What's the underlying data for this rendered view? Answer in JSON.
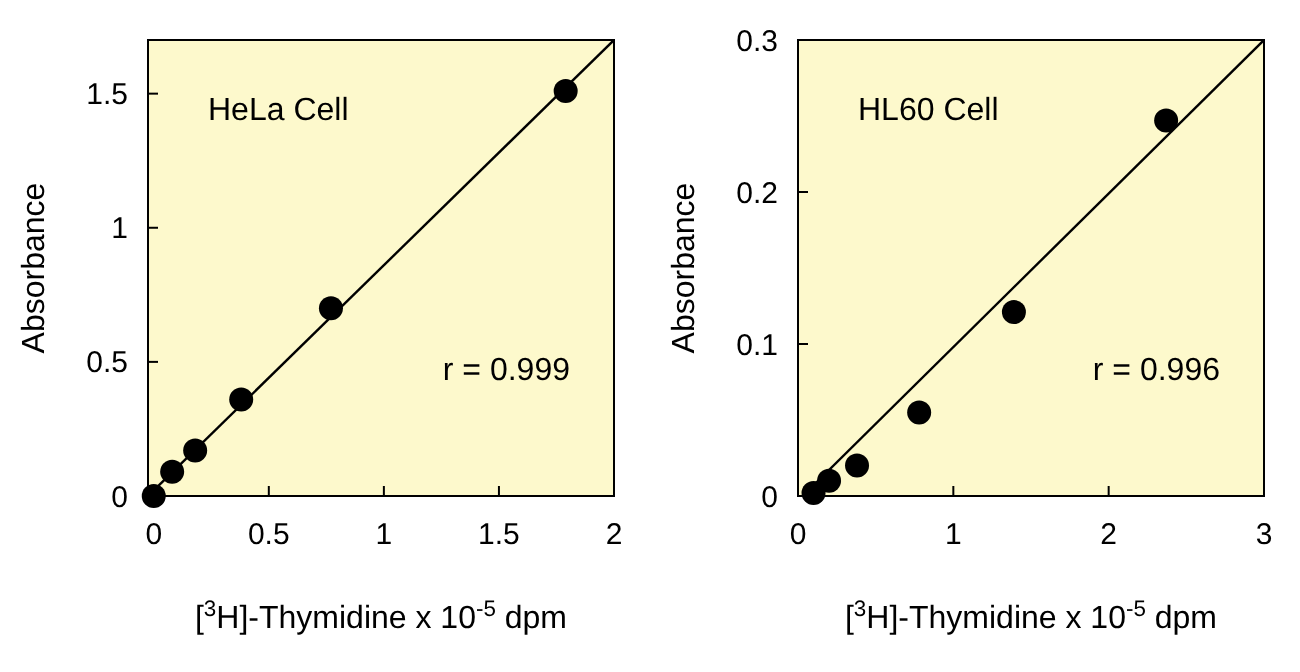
{
  "chart_data": [
    {
      "type": "scatter",
      "xlabel": "[$^{3}$H]-Thymidine x 10$^{-5}$ dpm",
      "ylabel": "Absorbance",
      "xlim": [
        -0.025,
        2
      ],
      "ylim": [
        0,
        1.7
      ],
      "xticks": [
        0,
        0.5,
        1,
        1.5,
        2
      ],
      "yticks": [
        0,
        0.5,
        1,
        1.5
      ],
      "grid": false,
      "annotations": [
        "HeLa Cell",
        "r = 0.999"
      ],
      "series": [
        {
          "color": "#000000",
          "marker": "circle",
          "x": [
            0,
            0.08,
            0.18,
            0.38,
            0.77,
            1.79
          ],
          "values": [
            0,
            0.09,
            0.17,
            0.36,
            0.7,
            1.51
          ]
        },
        {
          "type": "line",
          "color": "#000000",
          "x": [
            -0.025,
            2
          ],
          "values": [
            0,
            1.7
          ]
        }
      ]
    },
    {
      "type": "scatter",
      "xlabel": "[$^{3}$H]-Thymidine x 10$^{-5}$ dpm",
      "ylabel": "Absorbance",
      "xlim": [
        0,
        3
      ],
      "ylim": [
        0,
        0.3
      ],
      "xticks": [
        0,
        1,
        2,
        3
      ],
      "yticks": [
        0,
        0.1,
        0.2,
        0.3
      ],
      "grid": false,
      "annotations": [
        "HL60 Cell",
        "r = 0.996"
      ],
      "series": [
        {
          "color": "#000000",
          "marker": "circle",
          "x": [
            0.1,
            0.2,
            0.38,
            0.78,
            1.39,
            2.37
          ],
          "values": [
            0.002,
            0.01,
            0.02,
            0.055,
            0.121,
            0.247
          ]
        },
        {
          "type": "line",
          "color": "#000000",
          "x": [
            0.03,
            3
          ],
          "values": [
            0,
            0.3
          ]
        }
      ]
    }
  ]
}
